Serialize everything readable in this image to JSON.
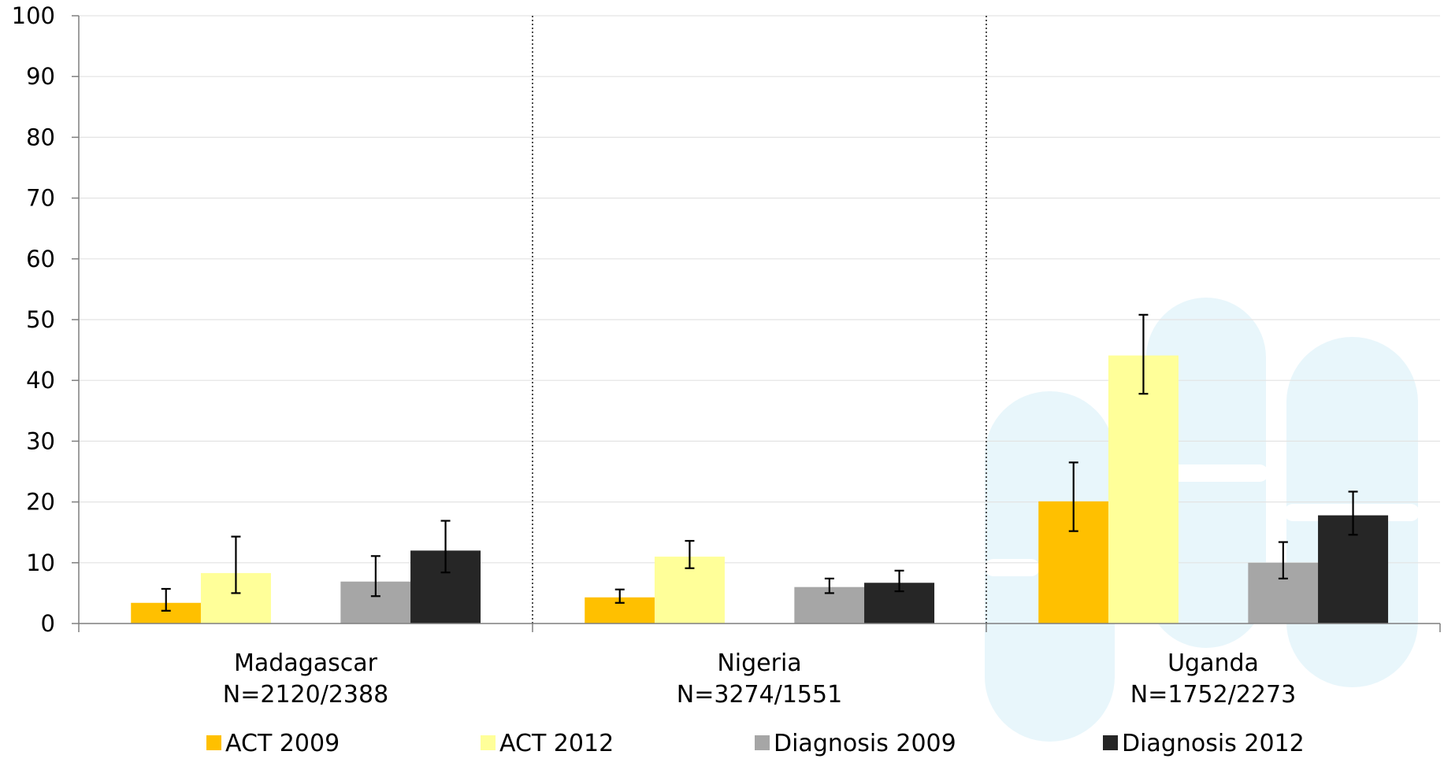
{
  "chart_data": {
    "type": "bar",
    "title": "",
    "xlabel": "",
    "ylabel": "",
    "ylim": [
      0,
      100
    ],
    "yticks": [
      0,
      10,
      20,
      30,
      40,
      50,
      60,
      70,
      80,
      90,
      100
    ],
    "grid": true,
    "legend_position": "bottom",
    "categories": [
      {
        "name": "Madagascar",
        "n": "N=2120/2388"
      },
      {
        "name": "Nigeria",
        "n": "N=3274/1551"
      },
      {
        "name": "Uganda",
        "n": "N=1752/2273"
      }
    ],
    "series": [
      {
        "name": "ACT 2009",
        "color": "#FFC000",
        "values": [
          3.4,
          4.3,
          20.1
        ],
        "err_low": [
          2.1,
          3.4,
          15.2
        ],
        "err_high": [
          5.7,
          5.6,
          26.5
        ]
      },
      {
        "name": "ACT 2012",
        "color": "#FFFF99",
        "values": [
          8.3,
          11.0,
          44.1
        ],
        "err_low": [
          5.0,
          9.1,
          37.8
        ],
        "err_high": [
          14.3,
          13.6,
          50.8
        ]
      },
      {
        "name": "Diagnosis 2009",
        "color": "#A6A6A6",
        "values": [
          6.9,
          6.0,
          10.0
        ],
        "err_low": [
          4.5,
          5.0,
          7.4
        ],
        "err_high": [
          11.1,
          7.4,
          13.4
        ]
      },
      {
        "name": "Diagnosis 2012",
        "color": "#262626",
        "values": [
          12.0,
          6.7,
          17.8
        ],
        "err_low": [
          8.4,
          5.3,
          14.6
        ],
        "err_high": [
          16.9,
          8.7,
          21.7
        ]
      }
    ]
  }
}
